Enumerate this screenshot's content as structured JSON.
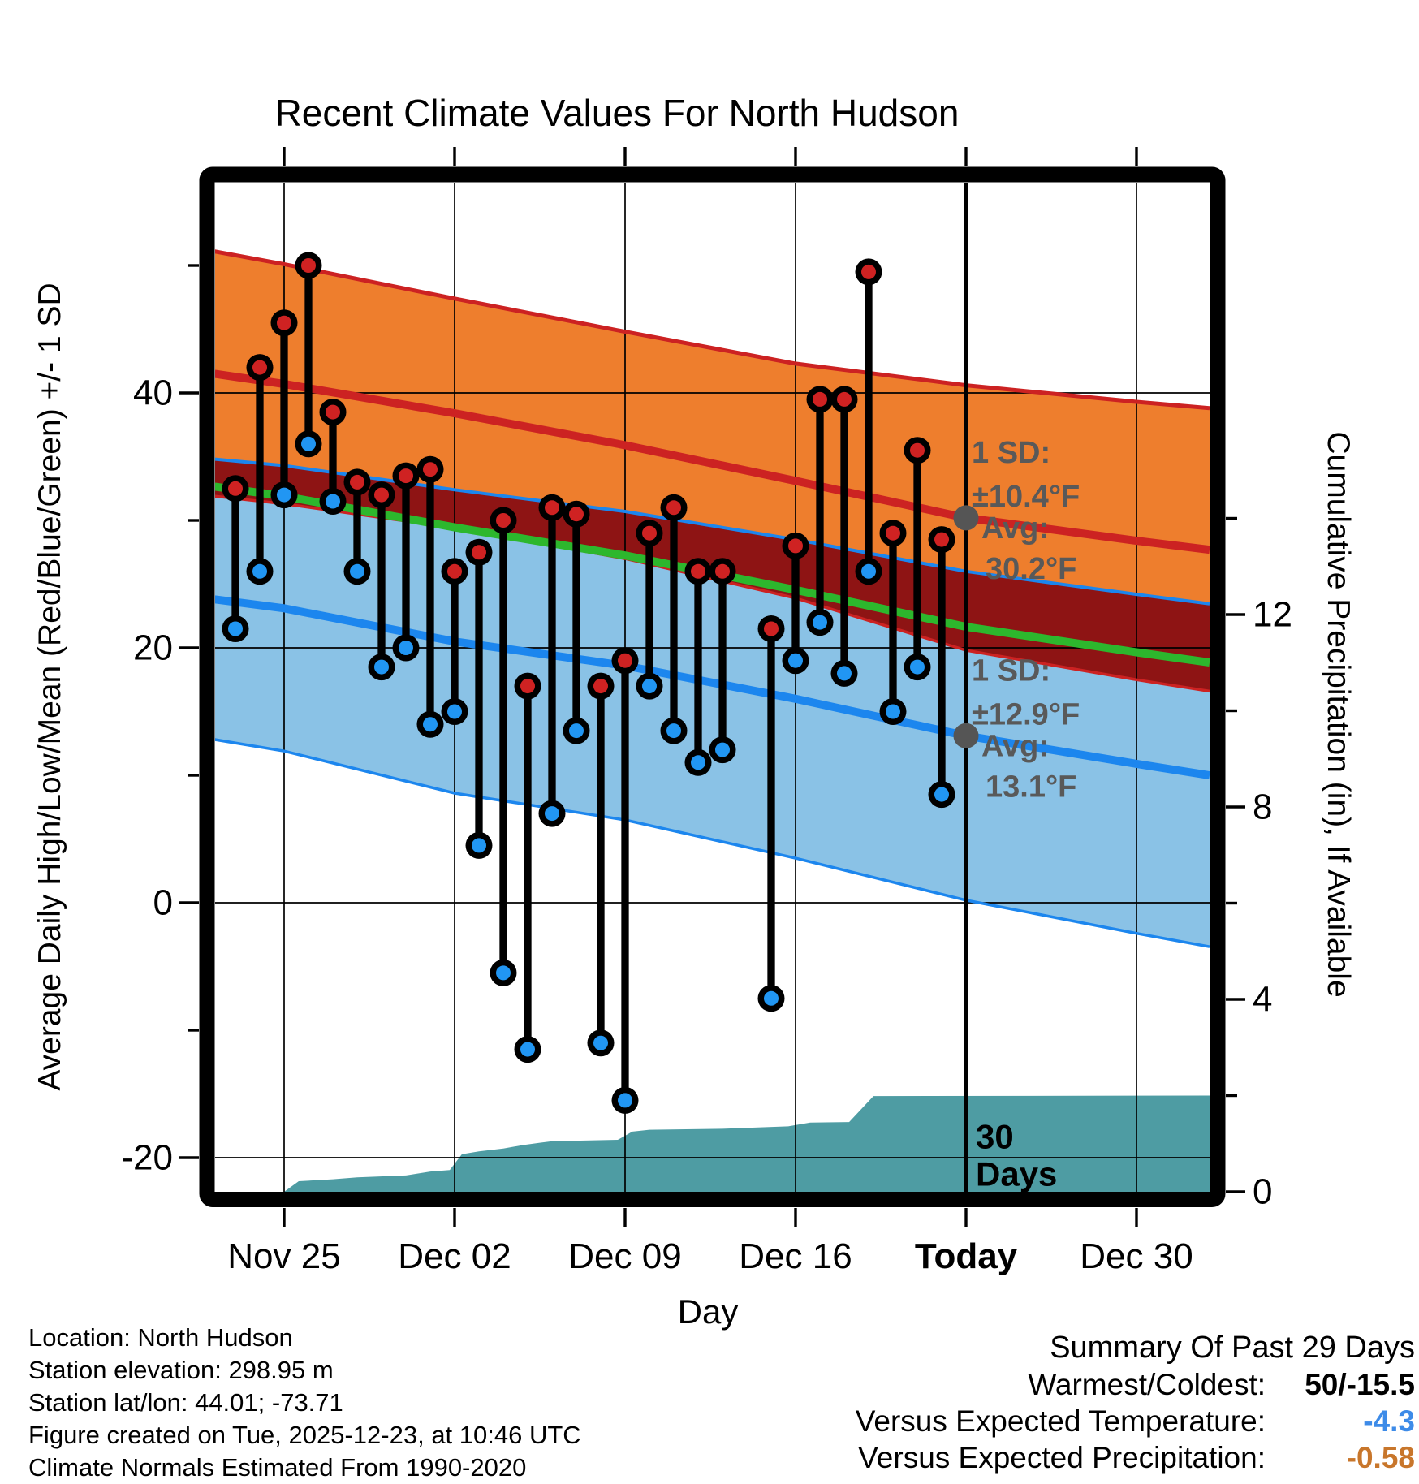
{
  "title": "Recent Climate Values For North Hudson",
  "axes": {
    "x_label": "Day",
    "y_left_label": "Average Daily High/Low/Mean (Red/Blue/Green) +/- 1 SD",
    "y_right_label": "Cumulative Precipitation (in), If Available",
    "x_ticks": [
      {
        "label": "Nov 25",
        "day": 2,
        "bold": false
      },
      {
        "label": "Dec 02",
        "day": 9,
        "bold": false
      },
      {
        "label": "Dec 09",
        "day": 16,
        "bold": false
      },
      {
        "label": "Dec 16",
        "day": 23,
        "bold": false
      },
      {
        "label": "Today",
        "day": 30,
        "bold": true
      },
      {
        "label": "Dec 30",
        "day": 37,
        "bold": false
      }
    ],
    "y_left_major": [
      40,
      20,
      0,
      -20
    ],
    "y_left_minor": [
      50,
      30,
      10,
      -10
    ],
    "y_right_major": [
      12,
      8,
      4,
      0
    ],
    "y_right_minor": [
      14,
      10,
      6,
      2
    ]
  },
  "chart_data": {
    "type": "scatter",
    "subtype": "daily-high-low-stems-with-climatology-bands",
    "title": "Recent Climate Values For North Hudson",
    "xlabel": "Day",
    "ylabel_left": "Average Daily High/Low/Mean (Red/Blue/Green) +/- 1 SD",
    "ylabel_right": "Cumulative Precipitation (in), If Available",
    "ylim_left_degF": [
      -22.7,
      56.5
    ],
    "ylim_right_inches": [
      0,
      21
    ],
    "x_range_days": [
      -0.85,
      40
    ],
    "today_day_index": 30,
    "daily": [
      {
        "date": "Nov 23",
        "high": 32.5,
        "low": 21.5
      },
      {
        "date": "Nov 24",
        "high": 42,
        "low": 26
      },
      {
        "date": "Nov 25",
        "high": 45.5,
        "low": 32
      },
      {
        "date": "Nov 26",
        "high": 50,
        "low": 36
      },
      {
        "date": "Nov 27",
        "high": 38.5,
        "low": 31.5
      },
      {
        "date": "Nov 28",
        "high": 33,
        "low": 26
      },
      {
        "date": "Nov 29",
        "high": 32,
        "low": 18.5
      },
      {
        "date": "Nov 30",
        "high": 33.5,
        "low": 20
      },
      {
        "date": "Dec 01",
        "high": 34,
        "low": 14
      },
      {
        "date": "Dec 02",
        "high": 26,
        "low": 15
      },
      {
        "date": "Dec 03",
        "high": 27.5,
        "low": 4.5
      },
      {
        "date": "Dec 04",
        "high": 30,
        "low": -5.5
      },
      {
        "date": "Dec 05",
        "high": 17,
        "low": -11.5
      },
      {
        "date": "Dec 06",
        "high": 31,
        "low": 7
      },
      {
        "date": "Dec 07",
        "high": 30.5,
        "low": 13.5
      },
      {
        "date": "Dec 08",
        "high": 17,
        "low": -11
      },
      {
        "date": "Dec 09",
        "high": 19,
        "low": -15.5
      },
      {
        "date": "Dec 10",
        "high": 29,
        "low": 17
      },
      {
        "date": "Dec 11",
        "high": 31,
        "low": 13.5
      },
      {
        "date": "Dec 12",
        "high": 26,
        "low": 11
      },
      {
        "date": "Dec 13",
        "high": 26,
        "low": 12
      },
      {
        "date": "Dec 14",
        "high": null,
        "low": null
      },
      {
        "date": "Dec 15",
        "high": 21.5,
        "low": -7.5
      },
      {
        "date": "Dec 16",
        "high": 28,
        "low": 19
      },
      {
        "date": "Dec 17",
        "high": 39.5,
        "low": 22
      },
      {
        "date": "Dec 18",
        "high": 39.5,
        "low": 18
      },
      {
        "date": "Dec 19",
        "high": 49.5,
        "low": 26
      },
      {
        "date": "Dec 20",
        "high": 29,
        "low": 15
      },
      {
        "date": "Dec 21",
        "high": 35.5,
        "low": 18.5
      },
      {
        "date": "Dec 22",
        "high": 28.5,
        "low": 8.5
      }
    ],
    "climatology": {
      "days": [
        -0.85,
        2,
        9,
        16,
        23,
        30,
        37,
        40
      ],
      "high_avg": [
        41.5,
        40.7,
        38.4,
        35.9,
        33.1,
        30.2,
        28.4,
        27.7
      ],
      "high_sd": [
        9.6,
        9.4,
        9.0,
        8.9,
        9.2,
        10.4,
        10.9,
        11.1
      ],
      "low_avg": [
        23.8,
        23.1,
        20.5,
        18.6,
        16.0,
        13.1,
        10.9,
        10.0
      ],
      "low_sd": [
        11.0,
        11.2,
        11.9,
        12.1,
        12.5,
        12.9,
        13.3,
        13.45
      ]
    },
    "precip_cumulative_in": {
      "points": [
        [
          -0.85,
          0
        ],
        [
          2,
          0
        ],
        [
          2.6,
          0.22
        ],
        [
          4,
          0.26
        ],
        [
          5,
          0.3
        ],
        [
          7,
          0.34
        ],
        [
          8,
          0.42
        ],
        [
          8.8,
          0.45
        ],
        [
          9.3,
          0.78
        ],
        [
          10,
          0.84
        ],
        [
          11,
          0.9
        ],
        [
          11.8,
          0.97
        ],
        [
          12.5,
          1.02
        ],
        [
          13,
          1.05
        ],
        [
          15.7,
          1.08
        ],
        [
          16.3,
          1.25
        ],
        [
          17,
          1.29
        ],
        [
          20,
          1.31
        ],
        [
          21,
          1.33
        ],
        [
          22.7,
          1.36
        ],
        [
          23.6,
          1.44
        ],
        [
          25.2,
          1.45
        ],
        [
          26.2,
          1.99
        ],
        [
          40,
          2.0
        ]
      ]
    }
  },
  "annotations": {
    "high": {
      "sd_line1": "1 SD:",
      "sd_line2": "±10.4°F",
      "avg_line1": "Avg:",
      "avg_line2": "30.2°F",
      "avg_value": 30.2
    },
    "low": {
      "sd_line1": "1 SD:",
      "sd_line2": "±12.9°F",
      "avg_line1": "Avg:",
      "avg_line2": "13.1°F",
      "avg_value": 13.1
    },
    "days_label_line1": "30",
    "days_label_line2": "Days"
  },
  "footer": {
    "line1": "Location: North Hudson",
    "line2": "Station elevation: 298.95 m",
    "line3": "Station lat/lon: 44.01; -73.71",
    "line4": "Figure created on Tue, 2025-12-23, at 10:46 UTC",
    "line5": "Climate Normals Estimated From 1990-2020"
  },
  "summary": {
    "title": "Summary Of Past 29 Days",
    "rows": [
      {
        "label": "Warmest/Coldest:",
        "value": "50/-15.5",
        "color": "#000000"
      },
      {
        "label": "Versus Expected Temperature:",
        "value": "-4.3",
        "color": "#3D8BE8"
      },
      {
        "label": "Versus Expected Precipitation:",
        "value": "-0.58",
        "color": "#C8762B"
      }
    ]
  },
  "colors": {
    "frame": "#000000",
    "grid": "#000000",
    "orange_band": "#EE7E2D",
    "crimson": "#CC2222",
    "maroon": "#8E1414",
    "green": "#2DB72D",
    "blue_band": "#8AC2E6",
    "blue_line": "#1C86EE",
    "dot_red": "#CF2222",
    "dot_blue": "#2196F3",
    "teal": "#4E9CA3",
    "annotation_gray": "#595959",
    "gray_dot": "#555555"
  }
}
